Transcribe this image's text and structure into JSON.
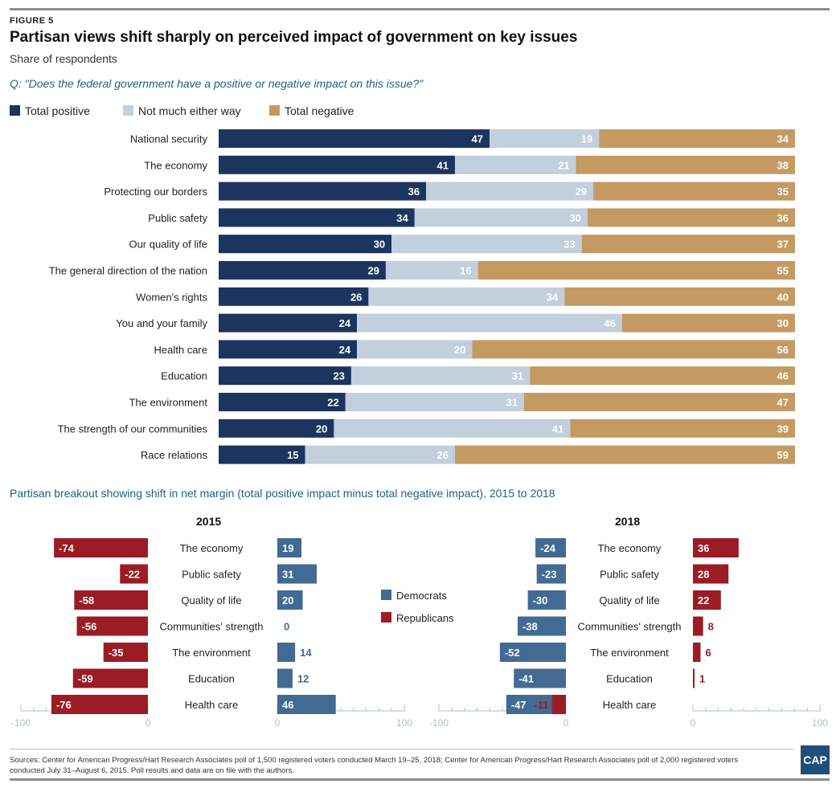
{
  "header": {
    "figure_label": "FIGURE 5",
    "title": "Partisan views shift sharply on perceived impact of government on key issues",
    "subtitle": "Share of respondents",
    "question": "Q: \"Does the federal government have a positive or negative impact on this issue?\""
  },
  "colors": {
    "positive": "#1c355e",
    "neutral": "#c2cfdc",
    "negative": "#c49a62",
    "democrats": "#426a93",
    "republicans": "#9b1c24",
    "axis": "#a9bfd3"
  },
  "chart_data": [
    {
      "type": "bar",
      "orientation": "horizontal",
      "stacked": true,
      "title": "",
      "legend": [
        "Total positive",
        "Not much either way",
        "Total negative"
      ],
      "legend_placement": "top-left",
      "categories": [
        "National security",
        "The economy",
        "Protecting our borders",
        "Public safety",
        "Our quality of life",
        "The general direction of the nation",
        "Women's rights",
        "You and your family",
        "Health care",
        "Education",
        "The environment",
        "The strength of our communities",
        "Race relations"
      ],
      "series": [
        {
          "name": "Total positive",
          "values": [
            47,
            41,
            36,
            34,
            30,
            29,
            26,
            24,
            24,
            23,
            22,
            20,
            15
          ]
        },
        {
          "name": "Not much either way",
          "values": [
            19,
            21,
            29,
            30,
            33,
            16,
            34,
            46,
            20,
            31,
            31,
            41,
            26
          ]
        },
        {
          "name": "Total negative",
          "values": [
            34,
            38,
            35,
            36,
            37,
            55,
            40,
            30,
            56,
            46,
            47,
            39,
            59
          ]
        }
      ],
      "xlim": [
        0,
        100
      ]
    },
    {
      "type": "bar",
      "orientation": "horizontal",
      "title": "Partisan breakout showing shift in net margin (total positive impact minus total negative impact), 2015 to 2018",
      "legend": [
        "Democrats",
        "Republicans"
      ],
      "legend_placement": "center",
      "panels": [
        {
          "year": "2015",
          "categories": [
            "The economy",
            "Public safety",
            "Quality of life",
            "Communities' strength",
            "The environment",
            "Education",
            "Health care"
          ],
          "series": [
            {
              "name": "Republicans",
              "values": [
                -74,
                -22,
                -58,
                -56,
                -35,
                -59,
                -76
              ]
            },
            {
              "name": "Democrats",
              "values": [
                19,
                31,
                20,
                0,
                14,
                12,
                46
              ]
            }
          ],
          "axes": [
            {
              "ticks": [
                "-100",
                "0"
              ],
              "xlim": [
                -100,
                0
              ]
            },
            {
              "ticks": [
                "0",
                "100"
              ],
              "xlim": [
                0,
                100
              ]
            }
          ]
        },
        {
          "year": "2018",
          "categories": [
            "The economy",
            "Public safety",
            "Quality of life",
            "Communities' strength",
            "The environment",
            "Education",
            "Health care"
          ],
          "series": [
            {
              "name": "Democrats",
              "values": [
                -24,
                -23,
                -30,
                -38,
                -52,
                -41,
                -47
              ]
            },
            {
              "name": "Republicans",
              "values": [
                36,
                28,
                22,
                8,
                6,
                1,
                -11
              ]
            }
          ],
          "axes": [
            {
              "ticks": [
                "-100",
                "0"
              ],
              "xlim": [
                -100,
                0
              ]
            },
            {
              "ticks": [
                "0",
                "100"
              ],
              "xlim": [
                0,
                100
              ]
            }
          ]
        }
      ]
    }
  ],
  "footer": {
    "source": "Sources: Center for American Progress/Hart Research Associates poll of 1,500 registered voters conducted March 19–25, 2018; Center for American Progress/Hart Research Associates poll of 2,000 registered voters conducted July 31–August 6, 2015. Poll results and data are on file with the authors.",
    "logo": "CAP"
  }
}
